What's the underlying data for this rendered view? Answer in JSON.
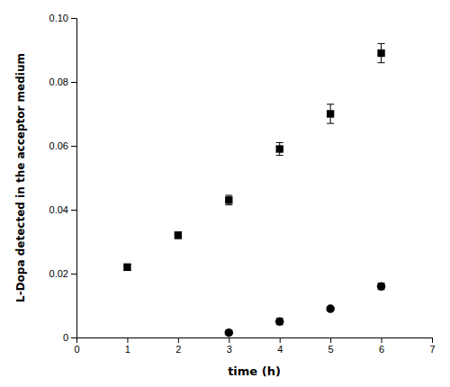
{
  "chart_data": {
    "type": "scatter",
    "xlabel": "time (h)",
    "ylabel": "L-Dopa detected in the acceptor medium",
    "xlim": [
      0,
      7
    ],
    "ylim": [
      0,
      0.1
    ],
    "xticks": [
      0,
      1,
      2,
      3,
      4,
      5,
      6,
      7
    ],
    "yticks": [
      0,
      0.02,
      0.04,
      0.06,
      0.08,
      {
        "value": 0.1,
        "label": "0.10"
      }
    ],
    "grid": false,
    "series": [
      {
        "color": "#000000",
        "marker": "square",
        "x": [
          1,
          2,
          3,
          4,
          5,
          6
        ],
        "values": [
          0.022,
          0.032,
          0.043,
          0.059,
          0.07,
          0.089
        ],
        "yerr": [
          0.001,
          0.001,
          0.0015,
          0.002,
          0.003,
          0.003
        ]
      },
      {
        "color": "#000000",
        "marker": "circle",
        "x": [
          3,
          4,
          5,
          6
        ],
        "values": [
          0.0015,
          0.005,
          0.009,
          0.016
        ],
        "yerr": [
          0.0005,
          0.001,
          0.0005,
          0.001
        ]
      }
    ]
  }
}
